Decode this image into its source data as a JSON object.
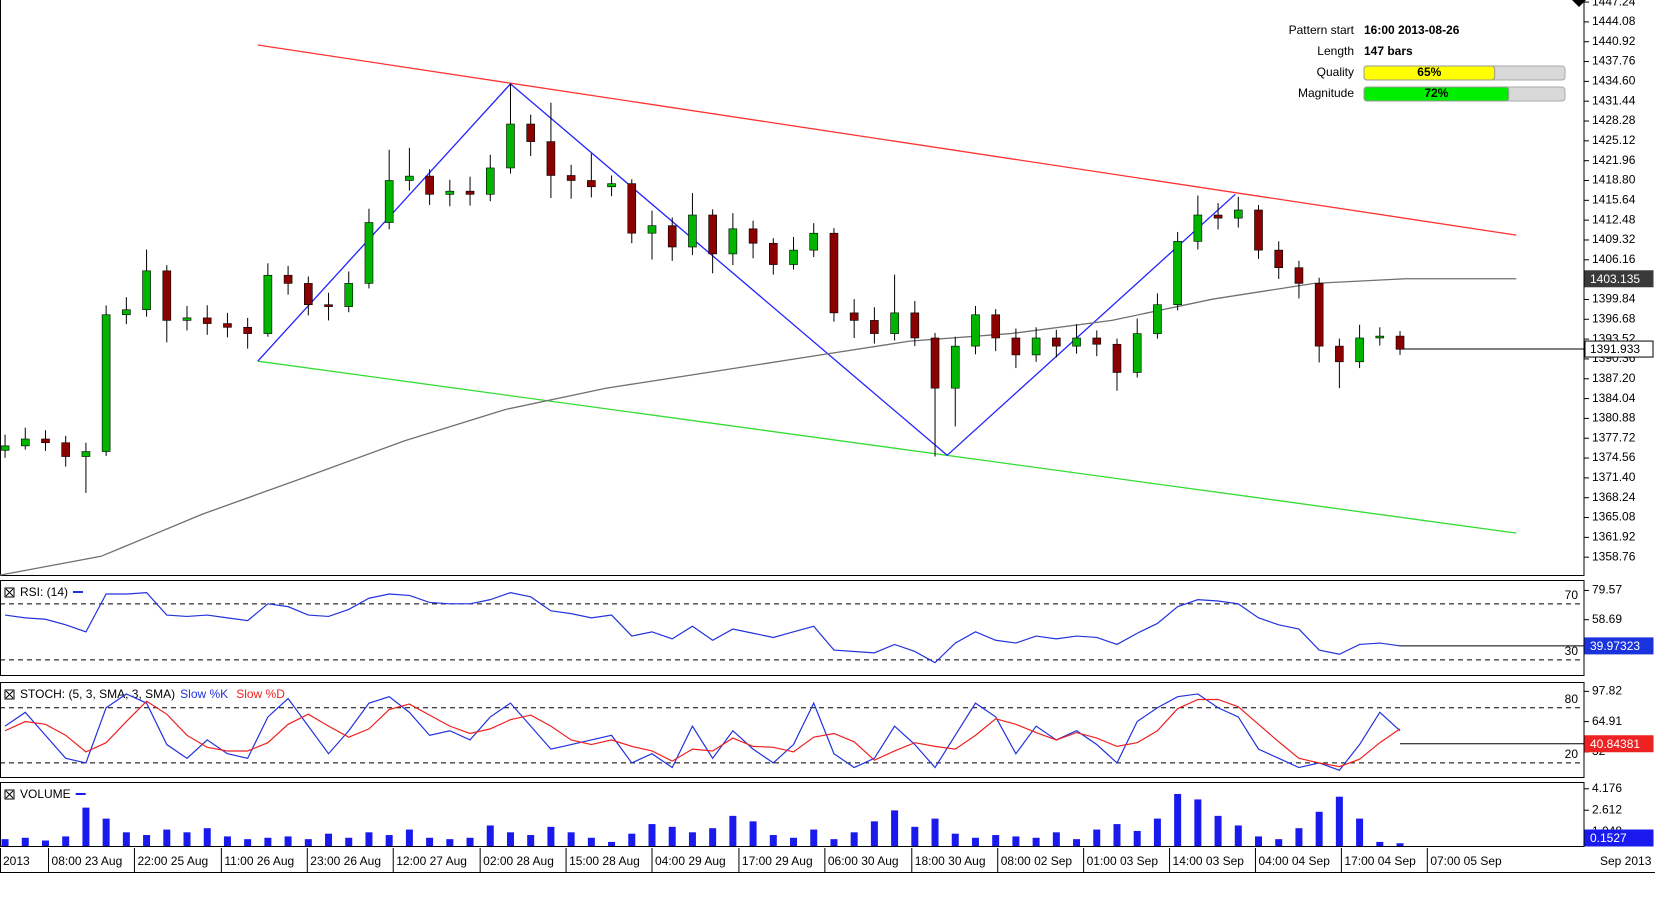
{
  "chart_data": [
    {
      "type": "candlestick",
      "xlim": [
        -0.25,
        78.1
      ],
      "xticks": [
        {
          "value": 2.15,
          "label": "08:00 23 Aug"
        },
        {
          "value": 6.4,
          "label": "22:00 25 Aug"
        },
        {
          "value": 10.7,
          "label": "11:00 26 Aug"
        },
        {
          "value": 14.95,
          "label": "23:00 26 Aug"
        },
        {
          "value": 19.2,
          "label": "12:00 27 Aug"
        },
        {
          "value": 23.5,
          "label": "02:00 28 Aug"
        },
        {
          "value": 27.75,
          "label": "15:00 28 Aug"
        },
        {
          "value": 32.0,
          "label": "04:00 29 Aug"
        },
        {
          "value": 36.3,
          "label": "17:00 29 Aug"
        },
        {
          "value": 40.55,
          "label": "06:00 30 Aug"
        },
        {
          "value": 44.85,
          "label": "18:00 30 Aug"
        },
        {
          "value": 49.1,
          "label": "08:00 02 Sep"
        },
        {
          "value": 53.35,
          "label": "01:00 03 Sep"
        },
        {
          "value": 57.6,
          "label": "14:00 03 Sep"
        },
        {
          "value": 61.85,
          "label": "04:00 04 Sep"
        },
        {
          "value": 66.1,
          "label": "17:00 04 Sep"
        },
        {
          "value": 70.35,
          "label": "07:00 05 Sep"
        }
      ],
      "period_start": "2013",
      "period_end": "Sep 2013",
      "ylim": [
        1355.92,
        1447.57
      ],
      "yticks": [
        1447.24,
        1444.08,
        1440.92,
        1437.76,
        {
          "value": 1434.6,
          "label": "1434.60"
        },
        1431.44,
        1428.28,
        1425.12,
        1421.96,
        {
          "value": 1418.8,
          "label": "1418.80"
        },
        1415.64,
        1412.48,
        1409.32,
        1406.16,
        1399.84,
        1396.68,
        1393.52,
        1390.36,
        {
          "value": 1387.2,
          "label": "1387.20"
        },
        1384.04,
        1380.88,
        1377.72,
        1374.56,
        {
          "value": 1371.4,
          "label": "1371.40"
        },
        1368.24,
        1365.08,
        1361.92,
        1358.76
      ],
      "up_color": "#00b400",
      "down_color": "#8b0000",
      "open": [
        1375.8,
        1376.5,
        1377.6,
        1377.0,
        1374.8,
        1375.6,
        1397.4,
        1398.2,
        1404.4,
        1396.5,
        1396.9,
        1396.0,
        1395.4,
        1394.4,
        1403.7,
        1402.4,
        1399.0,
        1398.7,
        1402.4,
        1412.1,
        1418.8,
        1419.5,
        1416.6,
        1417.1,
        1416.6,
        1420.8,
        1427.8,
        1425.0,
        1419.6,
        1418.8,
        1417.8,
        1418.3,
        1410.4,
        1411.6,
        1408.2,
        1413.3,
        1407.1,
        1411.1,
        1408.8,
        1405.4,
        1407.7,
        1410.4,
        1397.7,
        1396.5,
        1394.4,
        1397.7,
        1393.7,
        1385.7,
        1392.4,
        1397.4,
        1393.7,
        1391.0,
        1393.7,
        1392.4,
        1393.7,
        1392.7,
        1388.2,
        1394.4,
        1399.0,
        1409.1,
        1413.3,
        1412.8,
        1414.1,
        1407.7,
        1404.9,
        1402.4,
        1392.4,
        1389.9,
        1393.7,
        1394.0
      ],
      "high": [
        1378.3,
        1379.4,
        1379.0,
        1378.1,
        1377.0,
        1398.9,
        1400.2,
        1407.8,
        1405.3,
        1398.8,
        1398.9,
        1397.7,
        1396.9,
        1405.6,
        1405.2,
        1403.5,
        1400.9,
        1404.3,
        1414.3,
        1423.7,
        1424.0,
        1420.6,
        1418.9,
        1419.4,
        1422.9,
        1434.2,
        1429.3,
        1431.2,
        1421.3,
        1423.1,
        1419.6,
        1419.0,
        1414.0,
        1412.9,
        1416.8,
        1414.2,
        1413.6,
        1412.4,
        1409.6,
        1409.8,
        1412.0,
        1411.2,
        1399.9,
        1398.6,
        1403.8,
        1399.6,
        1394.5,
        1393.9,
        1398.8,
        1398.3,
        1395.2,
        1395.4,
        1395.0,
        1395.9,
        1394.9,
        1393.6,
        1396.8,
        1400.8,
        1410.6,
        1416.4,
        1415.2,
        1416.2,
        1414.9,
        1409.1,
        1406.0,
        1403.3,
        1393.6,
        1395.8,
        1395.4,
        1394.8
      ],
      "low": [
        1374.6,
        1375.9,
        1375.7,
        1373.2,
        1369.0,
        1374.9,
        1395.9,
        1397.1,
        1393.0,
        1394.9,
        1394.2,
        1393.8,
        1392.0,
        1393.9,
        1400.6,
        1397.3,
        1396.5,
        1397.8,
        1401.6,
        1411.0,
        1417.2,
        1414.9,
        1414.7,
        1414.8,
        1415.5,
        1419.9,
        1422.7,
        1416.0,
        1415.9,
        1416.1,
        1416.3,
        1408.8,
        1406.2,
        1406.0,
        1406.9,
        1404.0,
        1405.3,
        1406.4,
        1403.8,
        1404.6,
        1406.6,
        1396.3,
        1393.7,
        1392.8,
        1393.3,
        1392.4,
        1374.8,
        1379.6,
        1391.1,
        1391.6,
        1388.9,
        1389.9,
        1390.6,
        1391.2,
        1390.8,
        1385.3,
        1387.4,
        1393.6,
        1398.1,
        1407.8,
        1411.0,
        1411.3,
        1406.3,
        1403.1,
        1400.0,
        1389.8,
        1385.7,
        1388.9,
        1392.5,
        1391.0
      ],
      "close": [
        1376.5,
        1377.6,
        1377.0,
        1374.8,
        1375.6,
        1397.4,
        1398.2,
        1404.4,
        1396.5,
        1396.9,
        1396.0,
        1395.4,
        1394.4,
        1403.7,
        1402.4,
        1399.0,
        1398.7,
        1402.4,
        1412.1,
        1418.8,
        1419.5,
        1416.6,
        1417.1,
        1416.6,
        1420.8,
        1427.8,
        1425.0,
        1419.6,
        1418.8,
        1417.8,
        1418.3,
        1410.4,
        1411.6,
        1408.2,
        1413.3,
        1407.1,
        1411.1,
        1408.8,
        1405.4,
        1407.7,
        1410.4,
        1397.7,
        1396.5,
        1394.4,
        1397.7,
        1393.7,
        1385.7,
        1392.4,
        1397.4,
        1393.7,
        1391.0,
        1393.7,
        1392.4,
        1393.7,
        1392.7,
        1388.2,
        1394.4,
        1399.0,
        1409.1,
        1413.3,
        1412.8,
        1414.1,
        1407.7,
        1404.9,
        1402.4,
        1392.4,
        1389.9,
        1393.7,
        1394.0,
        1391.9
      ],
      "overlays": [
        {
          "color": "#ff3333",
          "x": [
            12.5,
            74.75
          ],
          "y": [
            1440.4,
            1410.1
          ]
        },
        {
          "color": "#33dd33",
          "x": [
            12.5,
            74.75
          ],
          "y": [
            1390.0,
            1362.6
          ]
        },
        {
          "color": "#2222ff",
          "x": [
            12.5,
            25.0,
            46.6,
            60.85
          ],
          "y": [
            1390.0,
            1434.2,
            1375.0,
            1416.6
          ]
        },
        {
          "color": "#707070",
          "x": [
            -0.25,
            4.75,
            9.75,
            14.75,
            19.75,
            24.75,
            29.75,
            34.75,
            39.75,
            44.75,
            49.75,
            54.75,
            59.75,
            64.75,
            69.25,
            74.75
          ],
          "y": [
            1355.9,
            1358.9,
            1365.6,
            1371.4,
            1377.3,
            1382.3,
            1385.7,
            1388.2,
            1390.7,
            1393.2,
            1394.4,
            1396.5,
            1399.9,
            1402.4,
            1403.135,
            1403.135
          ]
        }
      ],
      "ma_last": 1403.135,
      "last_price": 1391.933,
      "pattern": [
        {
          "label": "Pattern start",
          "text": "16:00 2013-08-26"
        },
        {
          "label": "Length",
          "text": "147 bars"
        },
        {
          "label": "Quality",
          "value": 65,
          "value_label": "65%",
          "color": "#ffff00"
        },
        {
          "label": "Magnitude",
          "value": 72,
          "value_label": "72%",
          "color": "#00ee00"
        }
      ]
    },
    {
      "type": "line",
      "title": "RSI: (14)",
      "ylim": [
        19.2,
        86.3
      ],
      "yticks": [
        79.57,
        58.69
      ],
      "levels": [
        70,
        30
      ],
      "series": [
        {
          "color": "#2233dd",
          "values": [
            62,
            60,
            59,
            55,
            50,
            77,
            77,
            78,
            62,
            61,
            62,
            60,
            58,
            70,
            68,
            62,
            61,
            66,
            74,
            77,
            76,
            71,
            70,
            70,
            73,
            78,
            75,
            65,
            63,
            60,
            62,
            47,
            50,
            45,
            54,
            44,
            52,
            49,
            46,
            50,
            54,
            37,
            36,
            35,
            41,
            36,
            28,
            42,
            50,
            44,
            42,
            47,
            45,
            47,
            46,
            41,
            49,
            56,
            68,
            73,
            72,
            70,
            60,
            55,
            52,
            37,
            34,
            41,
            42,
            40
          ]
        }
      ],
      "last_value": 39.97323,
      "last_color": "#1a33dd"
    },
    {
      "type": "line",
      "title": "STOCH: (5, 3, SMA, 3, SMA)",
      "ylim": [
        4.7,
        106.9
      ],
      "yticks": [
        97.82,
        64.91,
        32
      ],
      "levels": [
        80,
        20
      ],
      "series": [
        {
          "name": "Slow %K",
          "color": "#2233dd",
          "values": [
            60,
            75,
            50,
            25,
            20,
            80,
            95,
            85,
            40,
            25,
            45,
            30,
            25,
            70,
            90,
            60,
            30,
            55,
            85,
            92,
            75,
            50,
            55,
            45,
            70,
            85,
            60,
            35,
            40,
            45,
            50,
            20,
            30,
            15,
            60,
            25,
            55,
            35,
            20,
            40,
            85,
            30,
            15,
            25,
            60,
            40,
            15,
            50,
            85,
            70,
            30,
            60,
            45,
            55,
            40,
            20,
            65,
            80,
            92,
            95,
            80,
            70,
            35,
            25,
            15,
            20,
            12,
            40,
            75,
            55
          ]
        },
        {
          "name": "Slow %D",
          "color": "#ee2222",
          "values": [
            55,
            65,
            62,
            50,
            32,
            42,
            65,
            87,
            73,
            50,
            37,
            33,
            33,
            42,
            62,
            73,
            60,
            48,
            57,
            78,
            84,
            72,
            60,
            52,
            57,
            67,
            72,
            60,
            45,
            40,
            45,
            38,
            33,
            22,
            35,
            33,
            47,
            38,
            37,
            32,
            48,
            52,
            43,
            23,
            33,
            42,
            38,
            35,
            50,
            68,
            62,
            53,
            45,
            53,
            47,
            38,
            42,
            55,
            79,
            89,
            89,
            81,
            62,
            43,
            25,
            20,
            16,
            24,
            42,
            57
          ]
        }
      ],
      "last_value": 40.84381,
      "last_color": "#ee2222"
    },
    {
      "type": "bar",
      "title": "VOLUME",
      "ylim": [
        0,
        4.6
      ],
      "yticks": [
        4.176,
        2.612,
        1.048
      ],
      "color": "#1a1aee",
      "values": [
        0.5,
        0.6,
        0.4,
        0.7,
        2.8,
        2.0,
        1.0,
        0.8,
        1.2,
        1.0,
        1.3,
        0.7,
        0.5,
        0.6,
        0.7,
        0.5,
        0.9,
        0.6,
        1.0,
        0.8,
        1.2,
        0.6,
        0.5,
        0.6,
        1.5,
        1.0,
        0.8,
        1.4,
        1.0,
        0.6,
        0.3,
        0.9,
        1.6,
        1.4,
        1.0,
        1.3,
        2.2,
        1.8,
        0.8,
        0.6,
        1.2,
        0.5,
        1.0,
        1.8,
        2.6,
        1.4,
        2.0,
        0.9,
        0.6,
        0.8,
        0.7,
        0.6,
        1.0,
        0.5,
        1.2,
        1.6,
        1.1,
        2.0,
        3.8,
        3.4,
        2.2,
        1.5,
        0.7,
        0.5,
        1.3,
        2.5,
        3.6,
        2.0,
        0.3,
        0.2
      ],
      "last_value": 0.1527,
      "last_color": "#1a1aee"
    }
  ]
}
